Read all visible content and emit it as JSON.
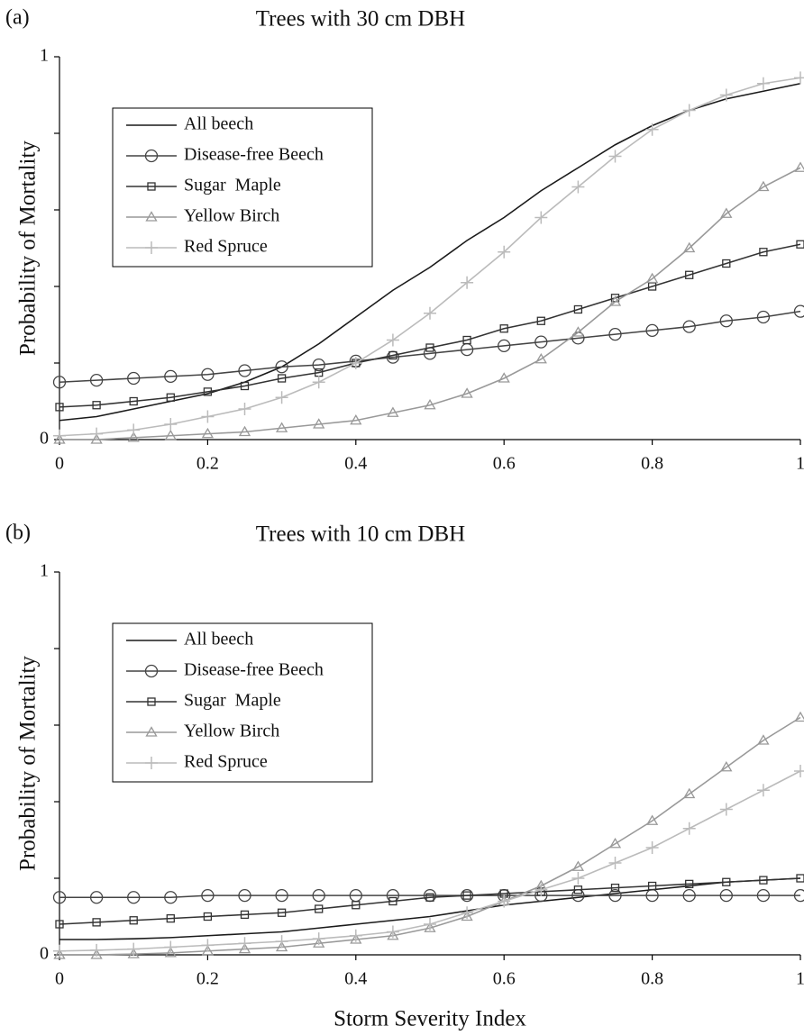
{
  "chart_data": [
    {
      "type": "line",
      "panel_label": "(a)",
      "title": "Trees with 30 cm DBH",
      "ylabel": "Probability of Mortality",
      "x": [
        0,
        0.05,
        0.1,
        0.15,
        0.2,
        0.25,
        0.3,
        0.35,
        0.4,
        0.45,
        0.5,
        0.55,
        0.6,
        0.65,
        0.7,
        0.75,
        0.8,
        0.85,
        0.9,
        0.95,
        1
      ],
      "xlim": [
        0,
        1
      ],
      "xticks": [
        0,
        0.2,
        0.4,
        0.6,
        0.8,
        1
      ],
      "ylim": [
        0,
        1
      ],
      "yticks": [
        0,
        {
          "value": 0.2,
          "label": null
        },
        {
          "value": 0.4,
          "label": null
        },
        {
          "value": 0.6,
          "label": null
        },
        {
          "value": 0.8,
          "label": null
        },
        1
      ],
      "series": [
        {
          "name": "All beech",
          "color": "#1a1a1a",
          "marker": "none",
          "values": [
            0.05,
            0.06,
            0.08,
            0.1,
            0.12,
            0.15,
            0.19,
            0.25,
            0.32,
            0.39,
            0.45,
            0.52,
            0.58,
            0.65,
            0.71,
            0.77,
            0.82,
            0.86,
            0.89,
            0.91,
            0.93
          ]
        },
        {
          "name": "Disease-free Beech",
          "color": "#444444",
          "marker": "circle",
          "values": [
            0.15,
            0.155,
            0.16,
            0.165,
            0.17,
            0.18,
            0.19,
            0.195,
            0.205,
            0.215,
            0.225,
            0.235,
            0.245,
            0.255,
            0.265,
            0.275,
            0.285,
            0.295,
            0.31,
            0.32,
            0.335
          ]
        },
        {
          "name": "Sugar  Maple",
          "color": "#333333",
          "marker": "square",
          "values": [
            0.085,
            0.09,
            0.1,
            0.11,
            0.125,
            0.14,
            0.16,
            0.175,
            0.2,
            0.22,
            0.24,
            0.26,
            0.29,
            0.31,
            0.34,
            0.37,
            0.4,
            0.43,
            0.46,
            0.49,
            0.51
          ]
        },
        {
          "name": "Yellow Birch",
          "color": "#999999",
          "marker": "triangle",
          "values": [
            0,
            0,
            0.005,
            0.01,
            0.015,
            0.02,
            0.03,
            0.04,
            0.05,
            0.07,
            0.09,
            0.12,
            0.16,
            0.21,
            0.28,
            0.36,
            0.42,
            0.5,
            0.59,
            0.66,
            0.71
          ]
        },
        {
          "name": "Red Spruce",
          "color": "#bbbbbb",
          "marker": "plus",
          "values": [
            0.01,
            0.015,
            0.025,
            0.04,
            0.06,
            0.08,
            0.11,
            0.15,
            0.2,
            0.26,
            0.33,
            0.41,
            0.49,
            0.58,
            0.66,
            0.74,
            0.81,
            0.86,
            0.9,
            0.93,
            0.945
          ]
        }
      ]
    },
    {
      "type": "line",
      "panel_label": "(b)",
      "title": "Trees with 10 cm DBH",
      "ylabel": "Probability of Mortality",
      "xlabel": "Storm Severity Index",
      "x": [
        0,
        0.05,
        0.1,
        0.15,
        0.2,
        0.25,
        0.3,
        0.35,
        0.4,
        0.45,
        0.5,
        0.55,
        0.6,
        0.65,
        0.7,
        0.75,
        0.8,
        0.85,
        0.9,
        0.95,
        1
      ],
      "xlim": [
        0,
        1
      ],
      "xticks": [
        0,
        0.2,
        0.4,
        0.6,
        0.8,
        1
      ],
      "ylim": [
        0,
        1
      ],
      "yticks": [
        0,
        {
          "value": 0.2,
          "label": null
        },
        {
          "value": 0.4,
          "label": null
        },
        {
          "value": 0.6,
          "label": null
        },
        {
          "value": 0.8,
          "label": null
        },
        1
      ],
      "series": [
        {
          "name": "All beech",
          "color": "#1a1a1a",
          "marker": "none",
          "values": [
            0.04,
            0.04,
            0.042,
            0.045,
            0.05,
            0.055,
            0.06,
            0.07,
            0.08,
            0.09,
            0.1,
            0.115,
            0.13,
            0.14,
            0.15,
            0.16,
            0.17,
            0.18,
            0.19,
            0.195,
            0.2
          ]
        },
        {
          "name": "Disease-free Beech",
          "color": "#444444",
          "marker": "circle",
          "values": [
            0.15,
            0.15,
            0.15,
            0.15,
            0.155,
            0.155,
            0.155,
            0.155,
            0.155,
            0.155,
            0.155,
            0.155,
            0.155,
            0.155,
            0.155,
            0.155,
            0.155,
            0.155,
            0.155,
            0.155,
            0.155
          ]
        },
        {
          "name": "Sugar  Maple",
          "color": "#333333",
          "marker": "square",
          "values": [
            0.08,
            0.085,
            0.09,
            0.095,
            0.1,
            0.105,
            0.11,
            0.12,
            0.13,
            0.14,
            0.15,
            0.155,
            0.16,
            0.165,
            0.17,
            0.175,
            0.18,
            0.185,
            0.19,
            0.195,
            0.2
          ]
        },
        {
          "name": "Yellow Birch",
          "color": "#999999",
          "marker": "triangle",
          "values": [
            0,
            0,
            0.002,
            0.005,
            0.01,
            0.015,
            0.02,
            0.03,
            0.04,
            0.05,
            0.07,
            0.1,
            0.14,
            0.18,
            0.23,
            0.29,
            0.35,
            0.42,
            0.49,
            0.56,
            0.62
          ]
        },
        {
          "name": "Red Spruce",
          "color": "#bbbbbb",
          "marker": "plus",
          "values": [
            0.01,
            0.012,
            0.015,
            0.02,
            0.025,
            0.03,
            0.035,
            0.042,
            0.05,
            0.06,
            0.08,
            0.11,
            0.14,
            0.17,
            0.2,
            0.24,
            0.28,
            0.33,
            0.38,
            0.43,
            0.48
          ]
        }
      ]
    }
  ]
}
